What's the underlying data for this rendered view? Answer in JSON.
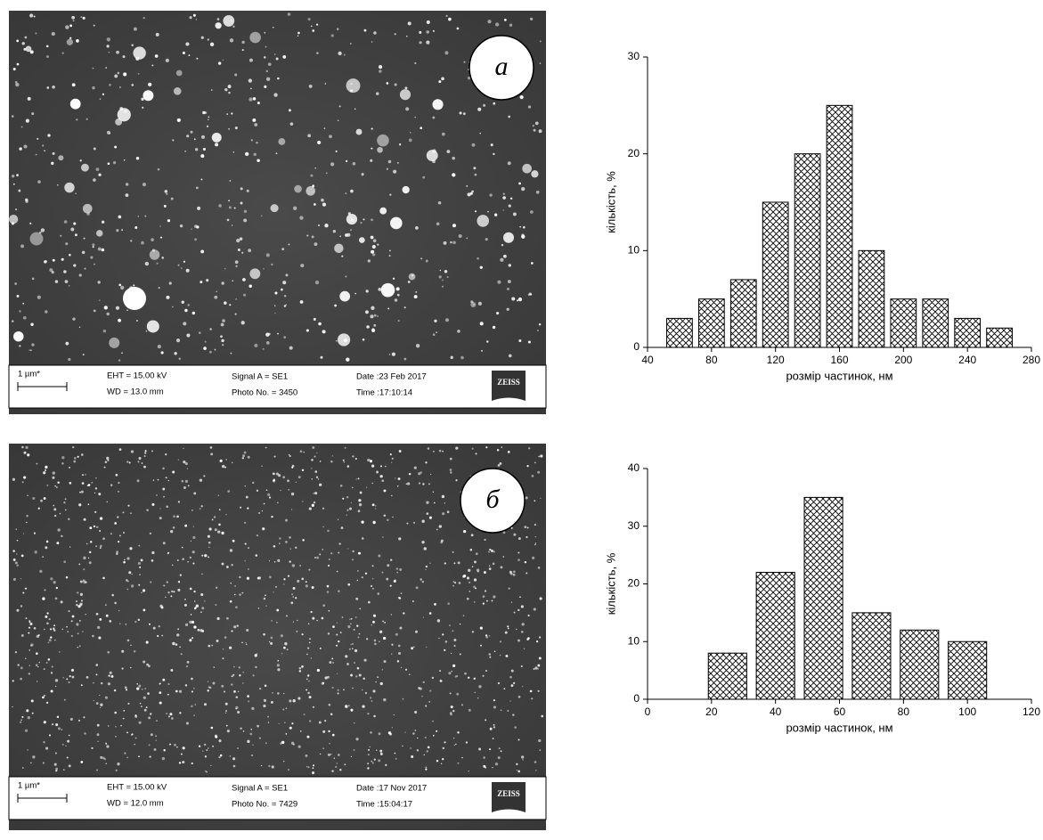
{
  "chart_data": [
    {
      "type": "bar",
      "x": [
        60,
        80,
        100,
        120,
        140,
        160,
        180,
        200,
        220,
        240,
        260
      ],
      "values": [
        3,
        5,
        7,
        15,
        20,
        25,
        10,
        5,
        5,
        3,
        2
      ],
      "xlim": [
        40,
        280
      ],
      "xticks": [
        40,
        80,
        120,
        160,
        200,
        240,
        280
      ],
      "ylim": [
        0,
        30
      ],
      "yticks": [
        0,
        10,
        20,
        30
      ],
      "xlabel": "розмір частинок, нм",
      "ylabel": "кількість, %"
    },
    {
      "type": "bar",
      "x": [
        25,
        40,
        55,
        70,
        85,
        100
      ],
      "values": [
        8,
        22,
        35,
        15,
        12,
        10
      ],
      "xlim": [
        0,
        120
      ],
      "xticks": [
        0,
        20,
        40,
        60,
        80,
        100,
        120
      ],
      "ylim": [
        0,
        40
      ],
      "yticks": [
        0,
        10,
        20,
        30,
        40
      ],
      "xlabel": "розмір частинок, нм",
      "ylabel": "кількість, %"
    }
  ],
  "images": [
    {
      "letter": "а",
      "scale": "1 µm*",
      "eht": "EHT = 15.00 kV",
      "wd": "WD = 13.0 mm",
      "signal": "Signal A = SE1",
      "photo": "Photo No. = 3450",
      "date": "Date :23 Feb 2017",
      "time": "Time :17:10:14",
      "logo": "ZEISS"
    },
    {
      "letter": "б",
      "scale": "1 µm*",
      "eht": "EHT = 15.00 kV",
      "wd": "WD = 12.0 mm",
      "signal": "Signal A = SE1",
      "photo": "Photo No. = 7429",
      "date": "Date :17 Nov 2017",
      "time": "Time :15:04:17",
      "logo": "ZEISS"
    }
  ]
}
